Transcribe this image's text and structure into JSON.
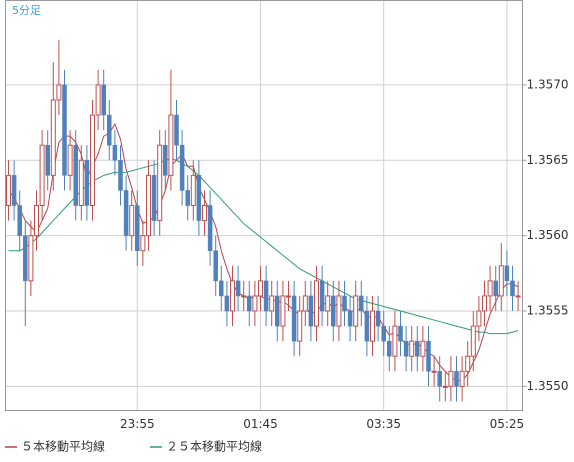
{
  "chart_data": {
    "type": "candlestick",
    "title": "5分足",
    "title_color": "#3a9fd6",
    "up_color": "#c0504d",
    "down_color": "#4f81bd",
    "grid": true,
    "ylim": [
      1.35484,
      1.35756
    ],
    "yticks": [
      {
        "value": 1.355,
        "label": "1.3550"
      },
      {
        "value": 1.3555,
        "label": "1.3555"
      },
      {
        "value": 1.356,
        "label": "1.3560"
      },
      {
        "value": 1.3565,
        "label": "1.3565"
      },
      {
        "value": 1.357,
        "label": "1.3570"
      }
    ],
    "categories": [
      null,
      null,
      null,
      null,
      null,
      null,
      null,
      null,
      null,
      null,
      null,
      null,
      null,
      null,
      null,
      null,
      null,
      null,
      null,
      null,
      null,
      null,
      null,
      "23:55",
      null,
      null,
      null,
      null,
      null,
      null,
      null,
      null,
      null,
      null,
      null,
      null,
      null,
      null,
      null,
      null,
      null,
      null,
      null,
      null,
      null,
      "01:45",
      null,
      null,
      null,
      null,
      null,
      null,
      null,
      null,
      null,
      null,
      null,
      null,
      null,
      null,
      null,
      null,
      null,
      null,
      null,
      null,
      null,
      "03:35",
      null,
      null,
      null,
      null,
      null,
      null,
      null,
      null,
      null,
      null,
      null,
      null,
      null,
      null,
      null,
      null,
      null,
      null,
      null,
      null,
      null,
      "05:25",
      null,
      null
    ],
    "open": [
      1.3562,
      1.3564,
      1.3562,
      1.356,
      1.3557,
      1.356,
      1.3562,
      1.3566,
      1.3564,
      1.3569,
      1.357,
      1.3564,
      1.3566,
      1.3562,
      1.3565,
      1.3562,
      1.3568,
      1.357,
      1.3568,
      1.3566,
      1.3565,
      1.3563,
      1.356,
      1.3562,
      1.3559,
      1.356,
      1.3564,
      1.3561,
      1.3566,
      1.3564,
      1.3568,
      1.3566,
      1.3563,
      1.3562,
      1.3564,
      1.3561,
      1.3562,
      1.3559,
      1.3557,
      1.3556,
      1.3555,
      1.3557,
      1.3556,
      1.3556,
      1.3555,
      1.3556,
      1.3557,
      1.3555,
      1.3556,
      1.3554,
      1.3556,
      1.3556,
      1.3553,
      1.3555,
      1.3556,
      1.3554,
      1.3557,
      1.3555,
      1.3556,
      1.3554,
      1.3556,
      1.3555,
      1.3554,
      1.3556,
      1.3555,
      1.3553,
      1.3555,
      1.3554,
      1.3553,
      1.3552,
      1.3554,
      1.3553,
      1.3552,
      1.3553,
      1.3552,
      1.3553,
      1.3551,
      1.3551,
      1.355,
      1.355,
      1.3551,
      1.355,
      1.3551,
      1.3552,
      1.3554,
      1.3555,
      1.3556,
      1.3557,
      1.3556,
      1.3558,
      1.3557,
      1.3556
    ],
    "high": [
      1.3565,
      1.3565,
      1.3563,
      1.3561,
      1.3561,
      1.3563,
      1.3567,
      1.3567,
      1.35715,
      1.3573,
      1.3571,
      1.3567,
      1.3567,
      1.3566,
      1.3566,
      1.3569,
      1.3571,
      1.3571,
      1.3569,
      1.3567,
      1.3566,
      1.3564,
      1.3563,
      1.3563,
      1.3561,
      1.3565,
      1.3565,
      1.3567,
      1.3567,
      1.3571,
      1.3569,
      1.3567,
      1.3564,
      1.3565,
      1.3565,
      1.3563,
      1.3563,
      1.356,
      1.3558,
      1.3557,
      1.3558,
      1.3558,
      1.3557,
      1.3557,
      1.3557,
      1.3558,
      1.3558,
      1.3557,
      1.3557,
      1.3557,
      1.3557,
      1.3557,
      1.3556,
      1.3557,
      1.3557,
      1.3558,
      1.3558,
      1.3557,
      1.3557,
      1.3557,
      1.3557,
      1.3556,
      1.3557,
      1.3557,
      1.3556,
      1.3556,
      1.3556,
      1.3555,
      1.3554,
      1.3555,
      1.3555,
      1.3554,
      1.3554,
      1.3554,
      1.3554,
      1.3554,
      1.3552,
      1.3552,
      1.3551,
      1.3552,
      1.3552,
      1.3552,
      1.3553,
      1.3555,
      1.3556,
      1.3557,
      1.3558,
      1.3558,
      1.35595,
      1.3559,
      1.3558,
      1.3557
    ],
    "low": [
      1.3561,
      1.3561,
      1.3559,
      1.3554,
      1.3556,
      1.3559,
      1.3561,
      1.3563,
      1.3563,
      1.3568,
      1.3563,
      1.3563,
      1.3561,
      1.3561,
      1.3561,
      1.3561,
      1.3567,
      1.3567,
      1.3565,
      1.3564,
      1.3562,
      1.3559,
      1.3559,
      1.3558,
      1.3558,
      1.3559,
      1.356,
      1.356,
      1.3563,
      1.3563,
      1.3565,
      1.3562,
      1.3561,
      1.3561,
      1.356,
      1.356,
      1.3558,
      1.3556,
      1.3555,
      1.3554,
      1.3554,
      1.3555,
      1.3555,
      1.3554,
      1.3554,
      1.3555,
      1.3554,
      1.3554,
      1.3553,
      1.3553,
      1.3555,
      1.3552,
      1.3552,
      1.3554,
      1.3553,
      1.3553,
      1.3554,
      1.3554,
      1.3553,
      1.3553,
      1.3554,
      1.3553,
      1.3553,
      1.3554,
      1.3552,
      1.3552,
      1.3553,
      1.3552,
      1.3551,
      1.3551,
      1.3552,
      1.3551,
      1.3551,
      1.3551,
      1.3551,
      1.355,
      1.355,
      1.3549,
      1.3549,
      1.3549,
      1.3549,
      1.3549,
      1.355,
      1.3551,
      1.3553,
      1.3554,
      1.3555,
      1.3555,
      1.3555,
      1.3556,
      1.3555,
      1.3555
    ],
    "close": [
      1.3564,
      1.3562,
      1.356,
      1.3557,
      1.356,
      1.3562,
      1.3566,
      1.3564,
      1.3569,
      1.357,
      1.3564,
      1.3566,
      1.3562,
      1.3565,
      1.3562,
      1.3568,
      1.357,
      1.3568,
      1.3566,
      1.3565,
      1.3563,
      1.356,
      1.3562,
      1.3559,
      1.356,
      1.3564,
      1.3561,
      1.3566,
      1.3564,
      1.3568,
      1.3566,
      1.3563,
      1.3562,
      1.3564,
      1.3561,
      1.3562,
      1.3559,
      1.3557,
      1.3556,
      1.3555,
      1.3557,
      1.3556,
      1.3556,
      1.3555,
      1.3556,
      1.3557,
      1.3555,
      1.3556,
      1.3554,
      1.3556,
      1.3556,
      1.3553,
      1.3555,
      1.3556,
      1.3554,
      1.3557,
      1.3555,
      1.3556,
      1.3554,
      1.3556,
      1.3555,
      1.3554,
      1.3556,
      1.3555,
      1.3553,
      1.3555,
      1.3554,
      1.3553,
      1.3552,
      1.3554,
      1.3553,
      1.3552,
      1.3553,
      1.3552,
      1.3553,
      1.3551,
      1.3551,
      1.355,
      1.355,
      1.3551,
      1.355,
      1.3551,
      1.3552,
      1.3554,
      1.3555,
      1.3556,
      1.3557,
      1.3556,
      1.3558,
      1.3557,
      1.3556,
      1.3556
    ],
    "series": [
      {
        "name": "５本移動平均線",
        "color": "#b5434a",
        "values": [
          1.3563,
          1.35625,
          1.35618,
          1.3561,
          1.35606,
          1.35602,
          1.3561,
          1.35618,
          1.35642,
          1.35662,
          1.35666,
          1.35666,
          1.35662,
          1.35654,
          1.35638,
          1.35646,
          1.35654,
          1.35666,
          1.35668,
          1.35674,
          1.35664,
          1.35644,
          1.35632,
          1.35618,
          1.35608,
          1.3561,
          1.35612,
          1.3562,
          1.3563,
          1.35646,
          1.3565,
          1.35654,
          1.35646,
          1.35646,
          1.35632,
          1.35624,
          1.35616,
          1.35606,
          1.3559,
          1.35578,
          1.35568,
          1.35562,
          1.3556,
          1.35558,
          1.3556,
          1.3556,
          1.35558,
          1.35558,
          1.35556,
          1.35556,
          1.35554,
          1.3555,
          1.35548,
          1.35552,
          1.35548,
          1.3555,
          1.35554,
          1.35556,
          1.35552,
          1.35556,
          1.35552,
          1.3555,
          1.3555,
          1.35552,
          1.35546,
          1.35546,
          1.35546,
          1.3554,
          1.35534,
          1.35536,
          1.35532,
          1.35528,
          1.35528,
          1.35528,
          1.35526,
          1.35522,
          1.3552,
          1.35514,
          1.3551,
          1.35506,
          1.35504,
          1.35504,
          1.35508,
          1.35516,
          1.35524,
          1.35536,
          1.35548,
          1.35556,
          1.35564,
          1.35568,
          1.35568,
          1.35566
        ]
      },
      {
        "name": "２５本移動平均線",
        "color": "#2e9e6e",
        "values": [
          1.3559,
          1.3559,
          1.3559,
          1.35592,
          1.35595,
          1.35598,
          1.35602,
          1.35606,
          1.3561,
          1.35614,
          1.35618,
          1.35622,
          1.35626,
          1.3563,
          1.35633,
          1.35636,
          1.35638,
          1.3564,
          1.35641,
          1.35642,
          1.35642,
          1.35642,
          1.35643,
          1.35644,
          1.35645,
          1.35646,
          1.35647,
          1.35648,
          1.3565,
          1.35651,
          1.3565,
          1.35648,
          1.35646,
          1.35643,
          1.3564,
          1.35636,
          1.35632,
          1.35628,
          1.35624,
          1.3562,
          1.35616,
          1.35612,
          1.35608,
          1.35605,
          1.35602,
          1.35599,
          1.35596,
          1.35593,
          1.3559,
          1.35587,
          1.35584,
          1.35581,
          1.35578,
          1.35576,
          1.35574,
          1.35572,
          1.3557,
          1.35568,
          1.35566,
          1.35564,
          1.35562,
          1.3556,
          1.35558,
          1.35557,
          1.35556,
          1.35555,
          1.35554,
          1.35553,
          1.35552,
          1.35551,
          1.3555,
          1.35549,
          1.35548,
          1.35547,
          1.35546,
          1.35545,
          1.35544,
          1.35543,
          1.35542,
          1.35541,
          1.3554,
          1.35539,
          1.35538,
          1.35537,
          1.35536,
          1.35536,
          1.35535,
          1.35535,
          1.35535,
          1.35535,
          1.35536,
          1.35537
        ]
      }
    ]
  }
}
